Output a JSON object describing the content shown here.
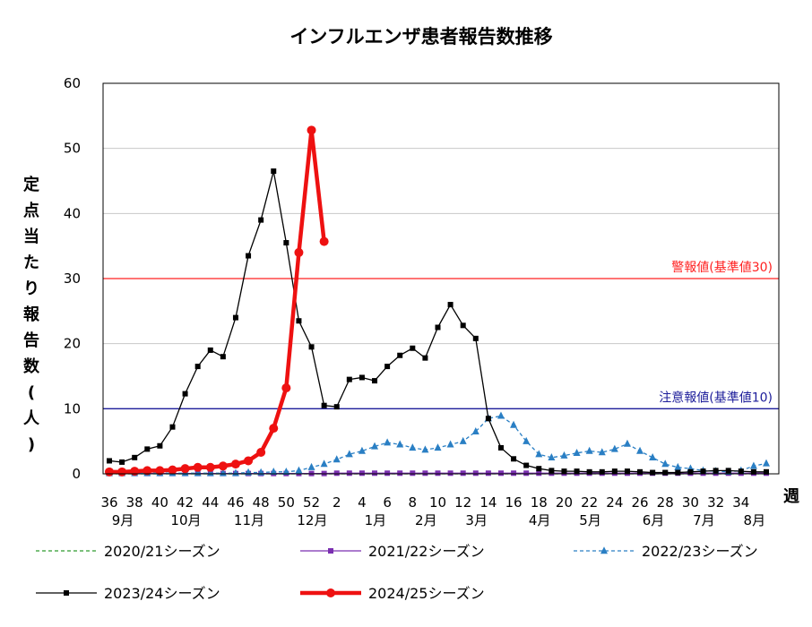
{
  "chart_data": {
    "type": "line",
    "title": "インフルエンザ患者報告数推移",
    "ylabel": "定点当たり報告数(人)",
    "xlabel": "週",
    "ylim": [
      0,
      60
    ],
    "yticks": [
      "0",
      "10",
      "20",
      "30",
      "40",
      "50",
      "60"
    ],
    "xtick_labels": [
      "36",
      "38",
      "40",
      "42",
      "44",
      "46",
      "48",
      "50",
      "52",
      "2",
      "4",
      "6",
      "8",
      "10",
      "12",
      "14",
      "16",
      "18",
      "20",
      "22",
      "24",
      "26",
      "28",
      "30",
      "32",
      "34"
    ],
    "month_labels": [
      "9月",
      "10月",
      "11月",
      "12月",
      "1月",
      "2月",
      "3月",
      "4月",
      "5月",
      "6月",
      "7月",
      "8月"
    ],
    "thresholds": [
      {
        "label": "警報値(基準値30)",
        "value": 30,
        "color": "#ff2020"
      },
      {
        "label": "注意報値(基準値10)",
        "value": 10,
        "color": "#1c1c9a"
      }
    ],
    "series": [
      {
        "name": "2020/21シーズン",
        "color": "#2e9b2e",
        "marker": "none",
        "dash": true,
        "values": [
          0,
          0,
          0,
          0,
          0,
          0,
          0,
          0,
          0,
          0,
          0,
          0,
          0,
          0,
          0,
          0,
          0,
          0,
          0,
          0,
          0,
          0,
          0,
          0,
          0,
          0,
          0,
          0,
          0,
          0,
          0,
          0,
          0,
          0,
          0,
          0,
          0,
          0,
          0,
          0,
          0,
          0,
          0,
          0,
          0,
          0,
          0,
          0,
          0,
          0,
          0,
          0,
          0
        ]
      },
      {
        "name": "2021/22シーズン",
        "color": "#7a2fb0",
        "marker": "square",
        "dash": false,
        "values": [
          0.05,
          0.05,
          0.05,
          0.05,
          0.05,
          0.05,
          0.05,
          0.05,
          0.05,
          0.05,
          0.05,
          0.05,
          0.05,
          0.05,
          0.05,
          0.05,
          0.05,
          0.05,
          0.1,
          0.1,
          0.1,
          0.1,
          0.1,
          0.1,
          0.1,
          0.1,
          0.1,
          0.1,
          0.1,
          0.1,
          0.1,
          0.1,
          0.1,
          0.1,
          0.1,
          0.1,
          0.1,
          0.1,
          0.1,
          0.1,
          0.1,
          0.1,
          0.1,
          0.1,
          0.1,
          0.1,
          0.1,
          0.1,
          0.1,
          0.1,
          0.1,
          0.1,
          0.1
        ]
      },
      {
        "name": "2022/23シーズン",
        "color": "#2a7fc4",
        "marker": "triangle",
        "dash": true,
        "values": [
          0.1,
          0.1,
          0.1,
          0.1,
          0.1,
          0.1,
          0.1,
          0.1,
          0.1,
          0.1,
          0.1,
          0.2,
          0.2,
          0.3,
          0.3,
          0.5,
          1.0,
          1.5,
          2.2,
          3.0,
          3.5,
          4.2,
          4.8,
          4.5,
          4.0,
          3.7,
          4.0,
          4.5,
          5.0,
          6.5,
          8.5,
          8.9,
          7.5,
          5.0,
          3.0,
          2.5,
          2.8,
          3.2,
          3.5,
          3.3,
          3.8,
          4.6,
          3.5,
          2.5,
          1.5,
          1.0,
          0.8,
          0.5,
          0.4,
          0.3,
          0.5,
          1.2,
          1.6
        ]
      },
      {
        "name": "2023/24シーズン",
        "color": "#000000",
        "marker": "square",
        "dash": false,
        "values": [
          2.0,
          1.8,
          2.5,
          3.8,
          4.3,
          7.2,
          12.3,
          16.5,
          19.0,
          18.0,
          24.0,
          33.5,
          39.0,
          46.5,
          35.5,
          23.5,
          19.5,
          10.5,
          10.3,
          14.5,
          14.8,
          14.3,
          16.5,
          18.2,
          19.3,
          17.8,
          22.5,
          26.0,
          22.8,
          20.8,
          8.5,
          4.0,
          2.3,
          1.3,
          0.8,
          0.5,
          0.4,
          0.4,
          0.3,
          0.3,
          0.4,
          0.4,
          0.3,
          0.2,
          0.2,
          0.2,
          0.3,
          0.4,
          0.5,
          0.5,
          0.4,
          0.3,
          0.3
        ]
      },
      {
        "name": "2024/25シーズン",
        "color": "#ee1111",
        "marker": "circle",
        "dash": false,
        "values": [
          0.3,
          0.3,
          0.4,
          0.5,
          0.5,
          0.6,
          0.8,
          1.0,
          1.0,
          1.2,
          1.5,
          2.0,
          3.3,
          7.0,
          13.2,
          34.0,
          52.8,
          35.7
        ]
      }
    ]
  }
}
